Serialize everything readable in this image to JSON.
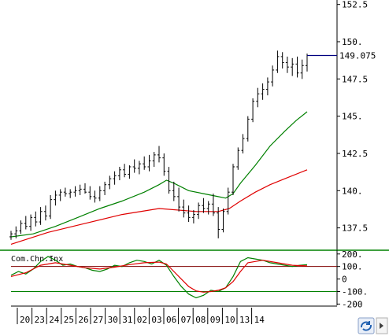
{
  "chart_data": [
    {
      "type": "ohlc",
      "panel": "price",
      "y_ticks": [
        "152.5",
        "150.",
        "147.5",
        "145.",
        "142.5",
        "140.",
        "137.5"
      ],
      "y_tick_values": [
        152.5,
        150,
        147.5,
        145,
        142.5,
        140,
        137.5
      ],
      "ylim": [
        136.0,
        152.8
      ],
      "last_price_label": "149.075",
      "last_price": 149.075,
      "colors": {
        "bars": "#000000",
        "ma_short": "#008000",
        "ma_long": "#e00000",
        "last_line": "#000080"
      },
      "bars": [
        [
          0,
          136.9,
          137.3,
          136.7,
          137.1
        ],
        [
          0.67,
          137.1,
          137.6,
          136.8,
          137.3
        ],
        [
          1.33,
          137.3,
          138.0,
          137.1,
          137.8
        ],
        [
          2,
          137.8,
          138.3,
          137.4,
          137.6
        ],
        [
          2.67,
          137.6,
          138.4,
          137.3,
          138.2
        ],
        [
          3.33,
          138.2,
          138.6,
          137.6,
          137.9
        ],
        [
          4,
          137.9,
          138.9,
          137.7,
          138.6
        ],
        [
          4.67,
          138.6,
          139.0,
          138.0,
          138.3
        ],
        [
          5.33,
          138.3,
          139.7,
          138.1,
          139.4
        ],
        [
          6,
          139.4,
          140.0,
          139.0,
          139.7
        ],
        [
          6.67,
          139.7,
          140.1,
          139.3,
          139.9
        ],
        [
          7.33,
          139.9,
          140.2,
          139.6,
          139.8
        ],
        [
          8,
          139.8,
          140.1,
          139.5,
          139.9
        ],
        [
          8.67,
          139.9,
          140.3,
          139.6,
          140.0
        ],
        [
          9.33,
          140.0,
          140.4,
          139.7,
          140.1
        ],
        [
          10,
          140.1,
          140.5,
          139.8,
          139.9
        ],
        [
          10.67,
          139.9,
          140.3,
          139.4,
          139.6
        ],
        [
          11.33,
          139.6,
          140.0,
          139.2,
          139.5
        ],
        [
          12,
          139.5,
          140.3,
          139.3,
          140.0
        ],
        [
          12.67,
          140.0,
          140.6,
          139.7,
          140.4
        ],
        [
          13.33,
          140.4,
          141.0,
          140.1,
          140.8
        ],
        [
          14,
          140.8,
          141.3,
          140.4,
          141.0
        ],
        [
          14.67,
          141.0,
          141.6,
          140.7,
          141.4
        ],
        [
          15.33,
          141.4,
          141.8,
          140.9,
          141.1
        ],
        [
          16,
          141.1,
          141.7,
          140.8,
          141.6
        ],
        [
          16.67,
          141.6,
          142.1,
          141.2,
          141.5
        ],
        [
          17.33,
          141.5,
          142.0,
          141.1,
          141.8
        ],
        [
          18,
          141.8,
          142.3,
          141.4,
          141.6
        ],
        [
          18.67,
          141.6,
          142.4,
          141.3,
          142.0
        ],
        [
          19.33,
          142.0,
          142.6,
          141.6,
          142.4
        ],
        [
          20,
          142.4,
          143.0,
          141.9,
          142.2
        ],
        [
          20.67,
          142.2,
          142.5,
          141.0,
          141.3
        ],
        [
          21.33,
          141.3,
          141.6,
          139.8,
          140.0
        ],
        [
          22,
          140.0,
          140.6,
          139.3,
          139.6
        ],
        [
          22.67,
          139.6,
          140.2,
          138.6,
          138.9
        ],
        [
          23.33,
          138.9,
          139.4,
          138.2,
          138.5
        ],
        [
          24,
          138.5,
          139.0,
          137.9,
          138.2
        ],
        [
          24.67,
          138.2,
          138.7,
          137.8,
          138.4
        ],
        [
          25.33,
          138.4,
          139.2,
          138.1,
          139.0
        ],
        [
          26,
          139.0,
          139.5,
          138.5,
          138.8
        ],
        [
          26.67,
          138.8,
          139.3,
          138.4,
          139.1
        ],
        [
          27.33,
          139.1,
          139.8,
          138.3,
          138.5
        ],
        [
          28,
          138.5,
          138.9,
          136.8,
          137.4
        ],
        [
          28.67,
          137.4,
          138.8,
          137.2,
          138.6
        ],
        [
          29.33,
          138.6,
          140.2,
          138.4,
          139.9
        ],
        [
          30,
          139.9,
          141.8,
          139.7,
          141.6
        ],
        [
          30.67,
          141.6,
          142.9,
          141.4,
          142.7
        ],
        [
          31.33,
          142.7,
          143.8,
          142.5,
          143.5
        ],
        [
          32,
          143.5,
          145.0,
          143.3,
          144.8
        ],
        [
          32.67,
          144.8,
          146.2,
          144.6,
          146.0
        ],
        [
          33.33,
          146.0,
          146.9,
          145.6,
          146.5
        ],
        [
          34,
          146.5,
          147.2,
          146.1,
          146.8
        ],
        [
          34.67,
          146.8,
          147.6,
          146.4,
          147.3
        ],
        [
          35.33,
          147.3,
          148.4,
          147.0,
          148.1
        ],
        [
          36,
          148.1,
          149.4,
          147.9,
          149.0
        ],
        [
          36.67,
          149.0,
          149.3,
          148.2,
          148.6
        ],
        [
          37.33,
          148.6,
          149.0,
          147.9,
          148.3
        ],
        [
          38,
          148.3,
          148.9,
          147.7,
          148.5
        ],
        [
          38.67,
          148.5,
          149.0,
          147.6,
          147.9
        ],
        [
          39.33,
          147.9,
          148.8,
          147.5,
          148.4
        ],
        [
          40,
          148.4,
          149.2,
          148.0,
          149.075
        ]
      ],
      "ma_short": [
        [
          0,
          136.9
        ],
        [
          3,
          137.1
        ],
        [
          6,
          137.6
        ],
        [
          9,
          138.2
        ],
        [
          12,
          138.8
        ],
        [
          15,
          139.3
        ],
        [
          18,
          139.9
        ],
        [
          20,
          140.4
        ],
        [
          21,
          140.7
        ],
        [
          22,
          140.5
        ],
        [
          24,
          140.0
        ],
        [
          26,
          139.8
        ],
        [
          28,
          139.6
        ],
        [
          29,
          139.5
        ],
        [
          30,
          139.8
        ],
        [
          31,
          140.5
        ],
        [
          33,
          141.7
        ],
        [
          35,
          143.0
        ],
        [
          37,
          144.0
        ],
        [
          38.5,
          144.7
        ],
        [
          40,
          145.3
        ]
      ],
      "ma_long": [
        [
          0,
          136.4
        ],
        [
          5,
          137.2
        ],
        [
          10,
          137.8
        ],
        [
          15,
          138.4
        ],
        [
          20,
          138.8
        ],
        [
          25,
          138.6
        ],
        [
          28,
          138.6
        ],
        [
          29.5,
          138.8
        ],
        [
          31,
          139.3
        ],
        [
          33,
          139.9
        ],
        [
          35,
          140.4
        ],
        [
          37,
          140.8
        ],
        [
          40,
          141.4
        ]
      ]
    },
    {
      "type": "line",
      "panel": "indicator",
      "title": "Com.Chn.Inx",
      "y_ticks": [
        "200.",
        "100.",
        "0",
        "-100.",
        "-200"
      ],
      "y_tick_values": [
        200,
        100,
        0,
        -100,
        -200
      ],
      "ylim": [
        -210,
        230
      ],
      "hlines": [
        100,
        -100
      ],
      "colors": {
        "cci": "#008000",
        "signal": "#e00000",
        "upper_line": "#800000",
        "lower_line": "#008000"
      },
      "series": [
        {
          "role": "cci",
          "values": [
            [
              0,
              30
            ],
            [
              1,
              60
            ],
            [
              2,
              40
            ],
            [
              3,
              80
            ],
            [
              4,
              140
            ],
            [
              5,
              180
            ],
            [
              6,
              150
            ],
            [
              7,
              110
            ],
            [
              8,
              120
            ],
            [
              9,
              100
            ],
            [
              10,
              90
            ],
            [
              11,
              70
            ],
            [
              12,
              60
            ],
            [
              13,
              80
            ],
            [
              14,
              110
            ],
            [
              15,
              100
            ],
            [
              16,
              130
            ],
            [
              17,
              150
            ],
            [
              18,
              140
            ],
            [
              19,
              120
            ],
            [
              20,
              150
            ],
            [
              21,
              110
            ],
            [
              22,
              20
            ],
            [
              23,
              -60
            ],
            [
              24,
              -120
            ],
            [
              25,
              -150
            ],
            [
              26,
              -130
            ],
            [
              27,
              -90
            ],
            [
              28,
              -100
            ],
            [
              29,
              -70
            ],
            [
              30,
              20
            ],
            [
              31,
              140
            ],
            [
              32,
              170
            ],
            [
              33,
              160
            ],
            [
              34,
              150
            ],
            [
              35,
              130
            ],
            [
              36,
              120
            ],
            [
              37,
              110
            ],
            [
              38,
              100
            ],
            [
              39,
              110
            ],
            [
              40,
              115
            ]
          ]
        },
        {
          "role": "signal",
          "values": [
            [
              0,
              20
            ],
            [
              2,
              50
            ],
            [
              4,
              110
            ],
            [
              6,
              130
            ],
            [
              8,
              110
            ],
            [
              10,
              90
            ],
            [
              12,
              80
            ],
            [
              14,
              95
            ],
            [
              16,
              115
            ],
            [
              18,
              130
            ],
            [
              20,
              135
            ],
            [
              21,
              120
            ],
            [
              22,
              60
            ],
            [
              23,
              0
            ],
            [
              24,
              -60
            ],
            [
              25,
              -95
            ],
            [
              26,
              -105
            ],
            [
              27,
              -100
            ],
            [
              28,
              -90
            ],
            [
              29,
              -70
            ],
            [
              30,
              -20
            ],
            [
              31,
              60
            ],
            [
              32,
              130
            ],
            [
              34,
              150
            ],
            [
              36,
              130
            ],
            [
              38,
              110
            ],
            [
              40,
              105
            ]
          ]
        }
      ]
    },
    {
      "type": "axis",
      "panel": "dates",
      "date_labels": [
        "20",
        "23",
        "24",
        "25",
        "26",
        "27",
        "30",
        "31",
        "02",
        "03",
        "06",
        "07",
        "08",
        "09",
        "10",
        "13",
        "14"
      ]
    }
  ]
}
